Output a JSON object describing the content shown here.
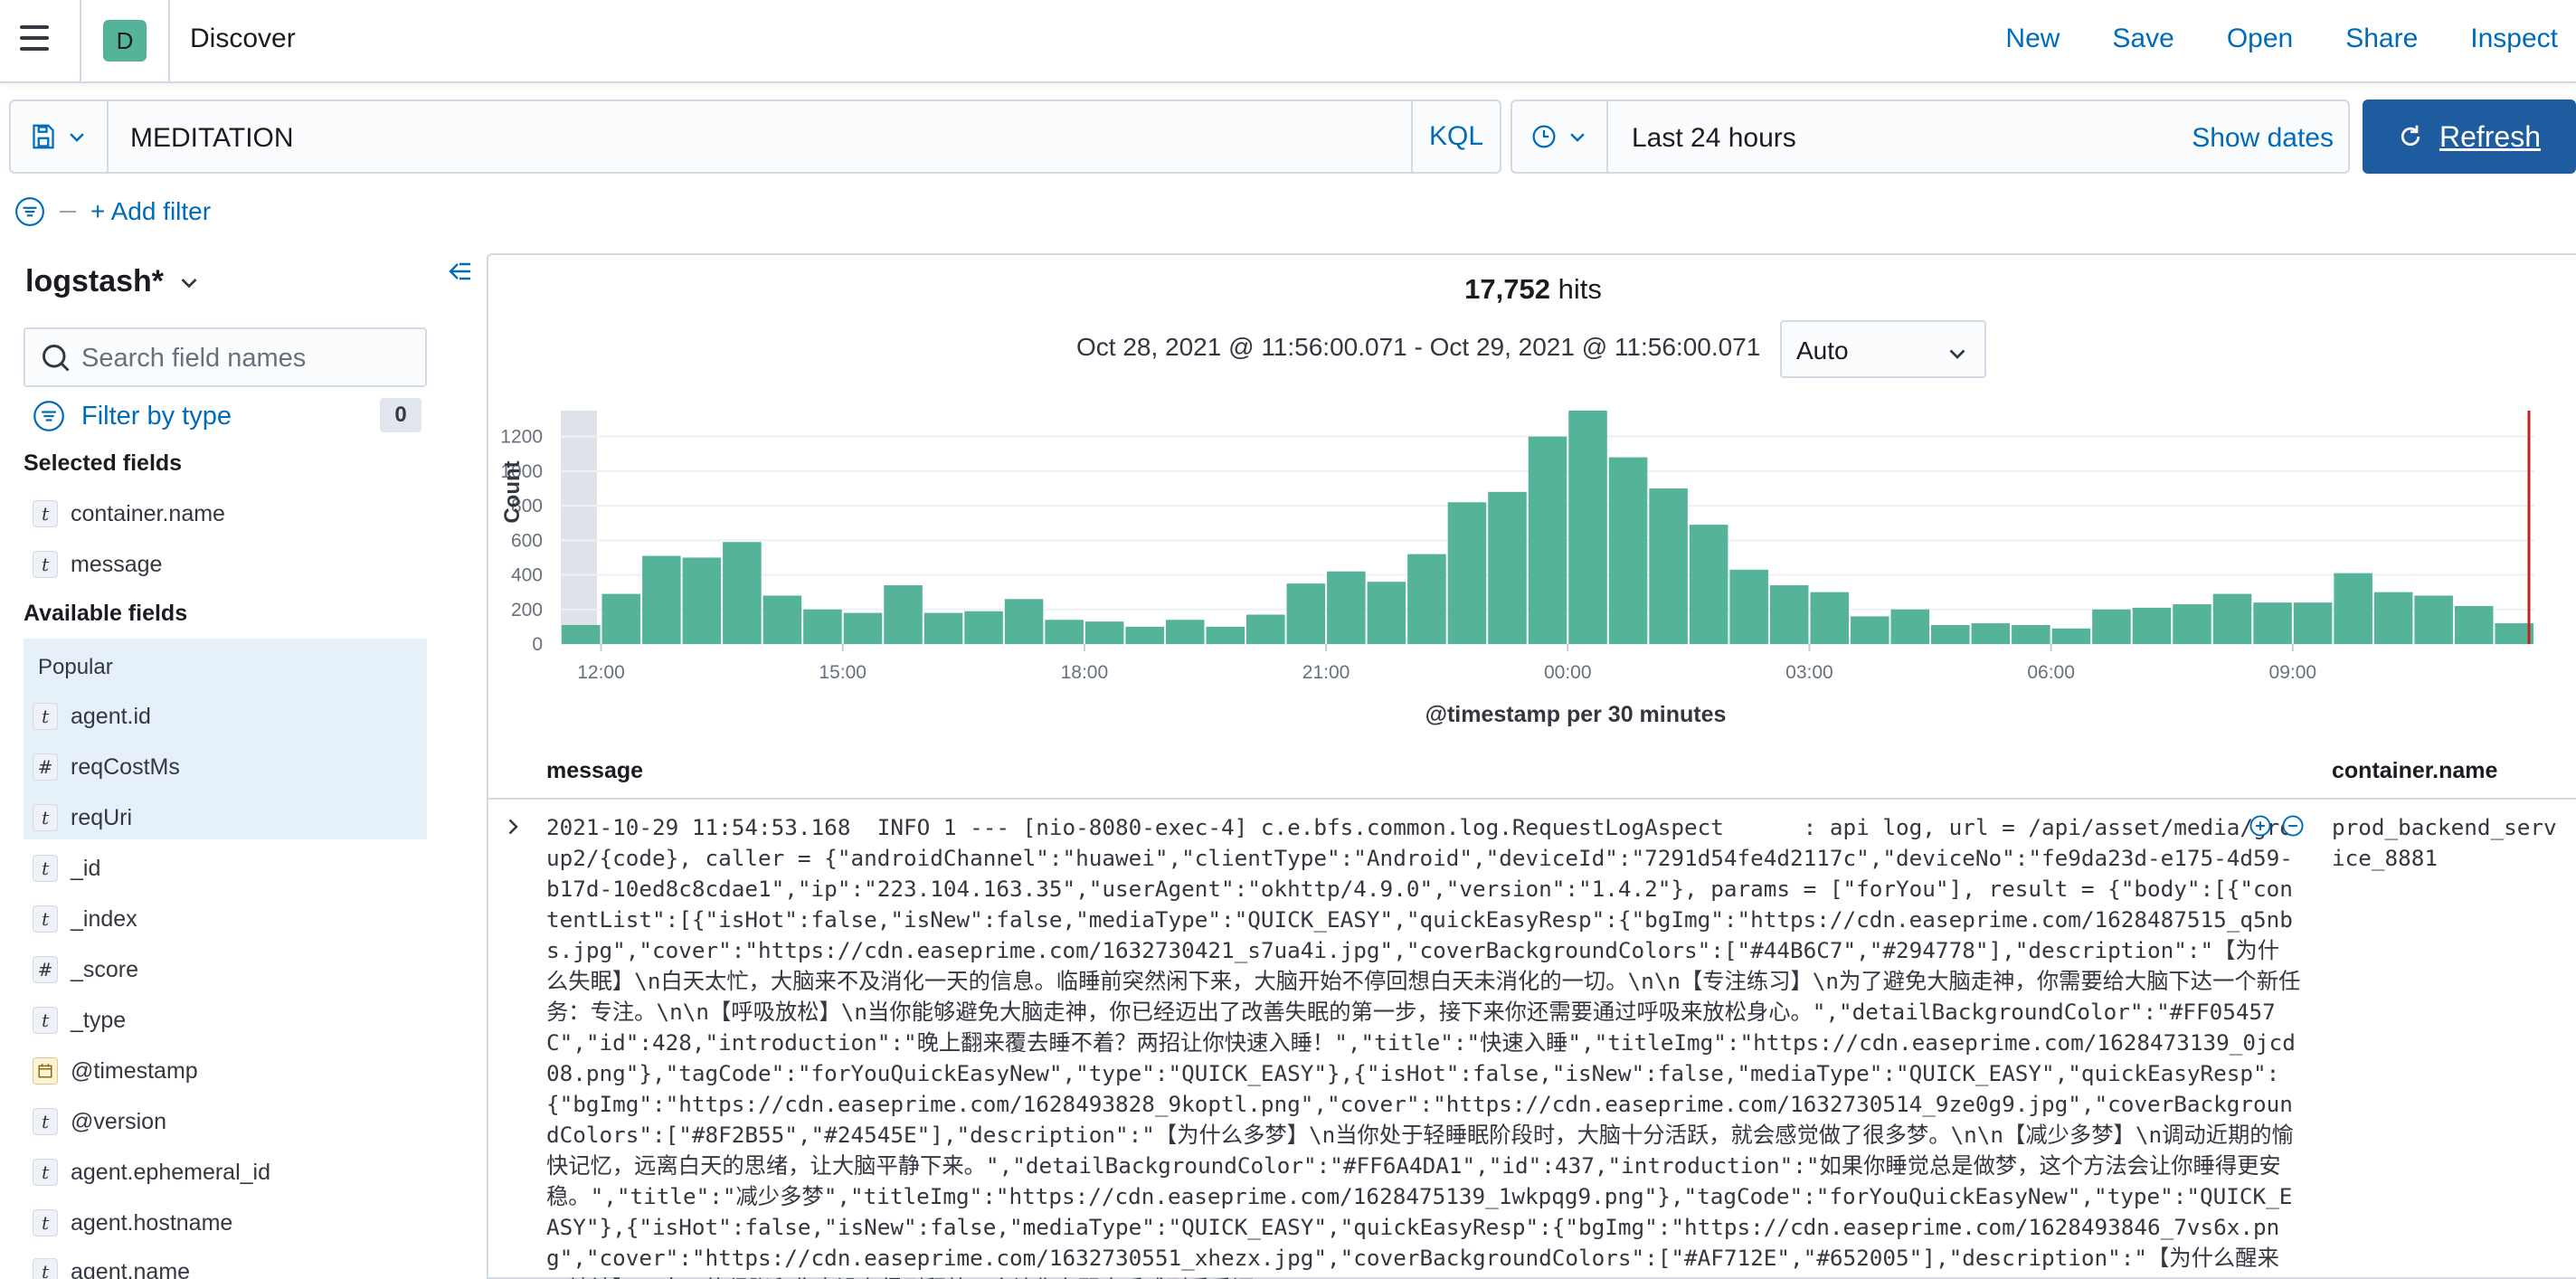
{
  "app": {
    "space_initial": "D",
    "title": "Discover",
    "nav_links": [
      "New",
      "Save",
      "Open",
      "Share",
      "Inspect"
    ]
  },
  "query_bar": {
    "query": "MEDITATION",
    "language": "KQL",
    "time_range": "Last 24 hours",
    "show_dates": "Show dates",
    "refresh_label": "Refresh"
  },
  "filter_bar": {
    "add_filter": "+ Add filter"
  },
  "sidebar": {
    "index_pattern": "logstash*",
    "search_placeholder": "Search field names",
    "filter_by_type": "Filter by type",
    "filter_count": "0",
    "selected_title": "Selected fields",
    "selected_fields": [
      {
        "type": "t",
        "name": "container.name"
      },
      {
        "type": "t",
        "name": "message"
      }
    ],
    "available_title": "Available fields",
    "popular_title": "Popular",
    "popular_fields": [
      {
        "type": "t",
        "name": "agent.id"
      },
      {
        "type": "#",
        "name": "reqCostMs"
      },
      {
        "type": "t",
        "name": "reqUri"
      }
    ],
    "other_fields": [
      {
        "type": "t",
        "name": "_id"
      },
      {
        "type": "t",
        "name": "_index"
      },
      {
        "type": "#",
        "name": "_score"
      },
      {
        "type": "t",
        "name": "_type"
      },
      {
        "type": "date",
        "name": "@timestamp"
      },
      {
        "type": "t",
        "name": "@version"
      },
      {
        "type": "t",
        "name": "agent.ephemeral_id"
      },
      {
        "type": "t",
        "name": "agent.hostname"
      },
      {
        "type": "t",
        "name": "agent.name"
      }
    ]
  },
  "results": {
    "hits_count": "17,752",
    "hits_label": "hits",
    "time_range": "Oct 28, 2021 @ 11:56:00.071 - Oct 29, 2021 @ 11:56:00.071",
    "interval": "Auto",
    "columns": [
      "message",
      "container.name"
    ],
    "rows": [
      {
        "message": "2021-10-29 11:54:53.168  INFO 1 --- [nio-8080-exec-4] c.e.bfs.common.log.RequestLogAspect      : api log, url = /api/asset/media/group2/{code}, caller = {\"androidChannel\":\"huawei\",\"clientType\":\"Android\",\"deviceId\":\"7291d54fe4d2117c\",\"deviceNo\":\"fe9da23d-e175-4d59-b17d-10ed8c8cdae1\",\"ip\":\"223.104.163.35\",\"userAgent\":\"okhttp/4.9.0\",\"version\":\"1.4.2\"}, params = [\"forYou\"], result = {\"body\":[{\"contentList\":[{\"isHot\":false,\"isNew\":false,\"mediaType\":\"QUICK_EASY\",\"quickEasyResp\":{\"bgImg\":\"https://cdn.easeprime.com/1628487515_q5nbs.jpg\",\"cover\":\"https://cdn.easeprime.com/1632730421_s7ua4i.jpg\",\"coverBackgroundColors\":[\"#44B6C7\",\"#294778\"],\"description\":\"【为什么失眠】\\n白天太忙，大脑来不及消化一天的信息。临睡前突然闲下来，大脑开始不停回想白天未消化的一切。\\n\\n【专注练习】\\n为了避免大脑走神，你需要给大脑下达一个新任务：专注。\\n\\n【呼吸放松】\\n当你能够避免大脑走神，你已经迈出了改善失眠的第一步，接下来你还需要通过呼吸来放松身心。\",\"detailBackgroundColor\":\"#FF05457C\",\"id\":428,\"introduction\":\"晚上翻来覆去睡不着？两招让你快速入睡！\",\"title\":\"快速入睡\",\"titleImg\":\"https://cdn.easeprime.com/1628473139_0jcd08.png\"},\"tagCode\":\"forYouQuickEasyNew\",\"type\":\"QUICK_EASY\"},{\"isHot\":false,\"isNew\":false,\"mediaType\":\"QUICK_EASY\",\"quickEasyResp\":{\"bgImg\":\"https://cdn.easeprime.com/1628493828_9koptl.png\",\"cover\":\"https://cdn.easeprime.com/1632730514_9ze0g9.jpg\",\"coverBackgroundColors\":[\"#8F2B55\",\"#24545E\"],\"description\":\"【为什么多梦】\\n当你处于轻睡眠阶段时，大脑十分活跃，就会感觉做了很多梦。\\n\\n【减少多梦】\\n调动近期的愉快记忆，远离白天的思绪，让大脑平静下来。\",\"detailBackgroundColor\":\"#FF6A4DA1\",\"id\":437,\"introduction\":\"如果你睡觉总是做梦，这个方法会让你睡得更安稳。\",\"title\":\"减少多梦\",\"titleImg\":\"https://cdn.easeprime.com/1628475139_1wkpqg9.png\"},\"tagCode\":\"forYouQuickEasyNew\",\"type\":\"QUICK_EASY\"},{\"isHot\":false,\"isNew\":false,\"mediaType\":\"QUICK_EASY\",\"quickEasyResp\":{\"bgImg\":\"https://cdn.easeprime.com/1628493846_7vs6x.png\",\"cover\":\"https://cdn.easeprime.com/1632730551_xhezx.jpg\",\"coverBackgroundColors\":[\"#AF712E\",\"#652005\"],\"description\":\"【为什么醒来不精神】\\n白天的紧张和焦虑没有得到释放，会让你在醒来后感到昏昏沉",
        "container_name": "prod_backend_service_8881"
      }
    ]
  },
  "chart_data": {
    "type": "bar",
    "title": "",
    "xlabel": "@timestamp per 30 minutes",
    "ylabel": "Count",
    "ylim": [
      0,
      1350
    ],
    "y_ticks": [
      0,
      200,
      400,
      600,
      800,
      1000,
      1200
    ],
    "x_tick_labels": [
      "12:00",
      "15:00",
      "18:00",
      "21:00",
      "00:00",
      "03:00",
      "06:00",
      "09:00"
    ],
    "x_tick_bin_index": [
      1,
      7,
      13,
      19,
      25,
      31,
      37,
      43
    ],
    "bar_color": "#54b399",
    "values": [
      110,
      290,
      510,
      500,
      590,
      280,
      200,
      180,
      340,
      180,
      190,
      260,
      140,
      130,
      100,
      140,
      100,
      170,
      350,
      420,
      360,
      520,
      820,
      880,
      1200,
      1350,
      1080,
      900,
      690,
      430,
      340,
      300,
      160,
      200,
      110,
      120,
      110,
      90,
      200,
      210,
      230,
      290,
      240,
      240,
      410,
      300,
      280,
      220,
      120
    ]
  },
  "colors": {
    "accent": "#006bb8",
    "refresh_bg": "#1f5b9f",
    "space_badge": "#54b399",
    "bar": "#54b399",
    "now_line": "#bd271e"
  }
}
